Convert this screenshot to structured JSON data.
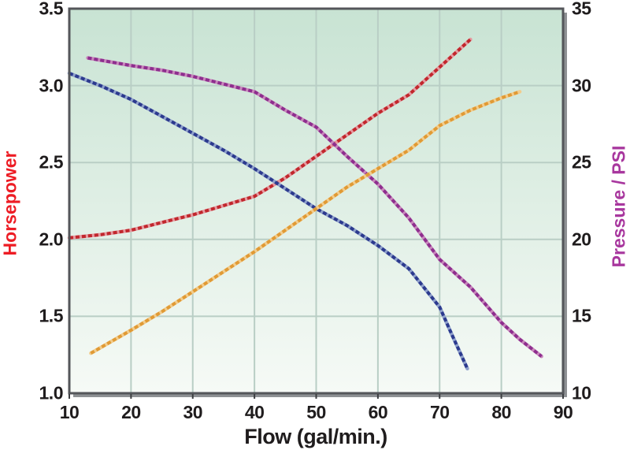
{
  "chart_data": {
    "type": "line",
    "description": "Pump performance curves: horsepower and pressure versus flow, four stippled curves on a mint-green gradient plot with gray border and drop shadow",
    "grid": true,
    "legend": "none",
    "x_axis": {
      "title": "Flow (gal/min.)",
      "min": 10,
      "max": 90,
      "ticks": [
        {
          "label": "10",
          "value": 10
        },
        {
          "label": "20",
          "value": 20
        },
        {
          "label": "30",
          "value": 30
        },
        {
          "label": "40",
          "value": 40
        },
        {
          "label": "50",
          "value": 50
        },
        {
          "label": "60",
          "value": 60
        },
        {
          "label": "70",
          "value": 70
        },
        {
          "label": "80",
          "value": 80
        },
        {
          "label": "90",
          "value": 90
        }
      ]
    },
    "y_left": {
      "title": "Horsepower",
      "title_color": "#ed1c24",
      "min": 1.0,
      "max": 3.5,
      "ticks": [
        {
          "label": "3.5",
          "value": 3.5
        },
        {
          "label": "3.0",
          "value": 3.0
        },
        {
          "label": "2.5",
          "value": 2.5
        },
        {
          "label": "2.0",
          "value": 2.0
        },
        {
          "label": "1.5",
          "value": 1.5
        },
        {
          "label": "1.0",
          "value": 1.0
        }
      ]
    },
    "y_right": {
      "title": "Pressure / PSI",
      "title_color": "#a8379e",
      "min": 10,
      "max": 35,
      "ticks": [
        {
          "label": "35",
          "value": 35
        },
        {
          "label": "30",
          "value": 30
        },
        {
          "label": "25",
          "value": 25
        },
        {
          "label": "20",
          "value": 20
        },
        {
          "label": "15",
          "value": 15
        },
        {
          "label": "10",
          "value": 10
        }
      ]
    },
    "series": [
      {
        "name": "red-horsepower-rising-curve",
        "axis": "left",
        "color": "#c1272d",
        "halo": "#e59aa0",
        "points": [
          [
            10,
            2.01
          ],
          [
            15,
            2.03
          ],
          [
            20,
            2.06
          ],
          [
            25,
            2.11
          ],
          [
            30,
            2.16
          ],
          [
            35,
            2.22
          ],
          [
            40,
            2.28
          ],
          [
            45,
            2.4
          ],
          [
            50,
            2.54
          ],
          [
            55,
            2.68
          ],
          [
            60,
            2.82
          ],
          [
            65,
            2.94
          ],
          [
            70,
            3.12
          ],
          [
            75,
            3.3
          ]
        ]
      },
      {
        "name": "blue-falling-curve-left-axis",
        "axis": "left",
        "color": "#2c3a8e",
        "halo": "#8fa0cb",
        "points": [
          [
            10,
            3.08
          ],
          [
            15,
            3.0
          ],
          [
            20,
            2.91
          ],
          [
            25,
            2.8
          ],
          [
            30,
            2.69
          ],
          [
            35,
            2.58
          ],
          [
            40,
            2.46
          ],
          [
            45,
            2.33
          ],
          [
            50,
            2.2
          ],
          [
            55,
            2.09
          ],
          [
            60,
            1.96
          ],
          [
            65,
            1.81
          ],
          [
            70,
            1.56
          ],
          [
            72,
            1.38
          ],
          [
            74.5,
            1.16
          ]
        ]
      },
      {
        "name": "purple-pressure-falling-curve",
        "axis": "right",
        "color": "#8e2e8e",
        "halo": "#c887bc",
        "points": [
          [
            13,
            31.8
          ],
          [
            20,
            31.3
          ],
          [
            25,
            31.0
          ],
          [
            30,
            30.6
          ],
          [
            35,
            30.1
          ],
          [
            40,
            29.6
          ],
          [
            45,
            28.4
          ],
          [
            50,
            27.3
          ],
          [
            55,
            25.4
          ],
          [
            60,
            23.6
          ],
          [
            65,
            21.4
          ],
          [
            70,
            18.7
          ],
          [
            75,
            16.9
          ],
          [
            80,
            14.6
          ],
          [
            83,
            13.5
          ],
          [
            86.5,
            12.4
          ]
        ]
      },
      {
        "name": "orange-rising-curve-right-axis",
        "axis": "right",
        "color": "#e09a35",
        "halo": "#f2cc8c",
        "points": [
          [
            13.5,
            12.6
          ],
          [
            20,
            14.1
          ],
          [
            25,
            15.3
          ],
          [
            30,
            16.6
          ],
          [
            35,
            17.9
          ],
          [
            40,
            19.2
          ],
          [
            45,
            20.6
          ],
          [
            50,
            22.0
          ],
          [
            55,
            23.4
          ],
          [
            60,
            24.6
          ],
          [
            65,
            25.8
          ],
          [
            70,
            27.4
          ],
          [
            75,
            28.4
          ],
          [
            80,
            29.2
          ],
          [
            83,
            29.6
          ]
        ]
      }
    ],
    "colors": {
      "plot_bg_top": "#c8e3d3",
      "plot_bg_bottom": "#f6faf6",
      "gridline": "#b9cec5",
      "border": "#54565a",
      "shadow": "#8e9194",
      "tick_mark": "#3c3e41",
      "tick_text": "#1f1c1d",
      "page_bg": "#ffffff"
    }
  }
}
